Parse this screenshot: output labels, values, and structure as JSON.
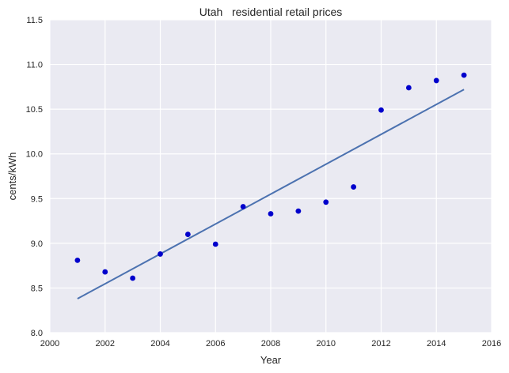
{
  "chart_data": {
    "type": "scatter",
    "title": "Utah   residential retail prices",
    "xlabel": "Year",
    "ylabel": "cents/kWh",
    "xlim": [
      2000,
      2016
    ],
    "ylim": [
      8.0,
      11.5
    ],
    "xticks": [
      "2000",
      "2002",
      "2004",
      "2006",
      "2008",
      "2010",
      "2012",
      "2014",
      "2016"
    ],
    "yticks": [
      "8.0",
      "8.5",
      "9.0",
      "9.5",
      "10.0",
      "10.5",
      "11.0",
      "11.5"
    ],
    "grid": true,
    "series": [
      {
        "x": [
          2001,
          2002,
          2003,
          2004,
          2005,
          2006,
          2007,
          2008,
          2009,
          2010,
          2011,
          2012,
          2013,
          2014,
          2015
        ],
        "y": [
          8.81,
          8.68,
          8.61,
          8.88,
          9.1,
          8.99,
          9.41,
          9.33,
          9.36,
          9.46,
          9.63,
          10.49,
          10.74,
          10.82,
          10.88
        ],
        "color": "#0000cc"
      }
    ],
    "trend_line": {
      "x": [
        2001,
        2015
      ],
      "y": [
        8.38,
        10.72
      ],
      "color": "#4c72b0"
    },
    "colors": {
      "plot_background": "#eaeaf2",
      "grid": "#ffffff"
    }
  }
}
